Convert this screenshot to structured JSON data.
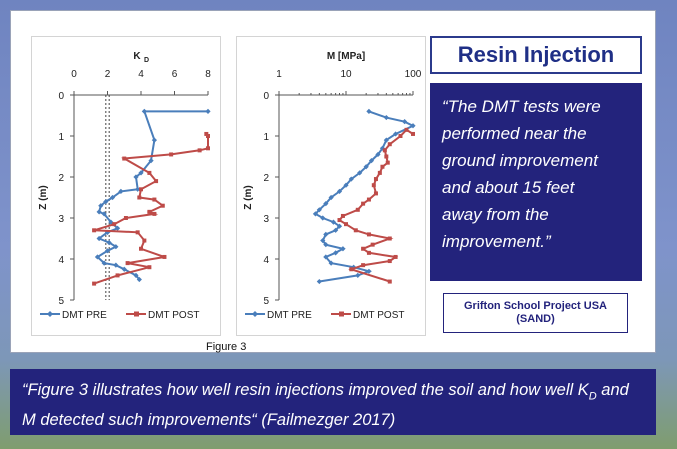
{
  "title": "Resin Injection",
  "quote_lines": [
    "“The DMT tests were",
    "performed near the",
    "ground improvement",
    "and about 15 feet",
    "away from the",
    "improvement.”"
  ],
  "project": {
    "line1": "Grifton School Project USA",
    "line2": "(SAND)"
  },
  "figure_label": "Figure 3",
  "caption": {
    "part1": "“Figure 3 illustrates how well resin injections improved the soil and how well K",
    "sub": "D",
    "part2": " and M detected such improvements“ (Failmezger 2017)"
  },
  "colors": {
    "pre": "#4a7ebb",
    "post": "#be4b48",
    "dark_blue": "#23237c"
  },
  "chart_data": [
    {
      "type": "line",
      "title_main": "K",
      "title_sub": "D",
      "ylabel": "Z (m)",
      "xlim": [
        0,
        8
      ],
      "ylim": [
        5,
        0
      ],
      "x_ticks": [
        "0",
        "2",
        "4",
        "6",
        "8"
      ],
      "y_ticks": [
        "0",
        "1",
        "2",
        "3",
        "4",
        "5"
      ],
      "reference_lines": [
        1.9,
        2.1
      ],
      "legend": "bottom",
      "series": [
        {
          "name": "DMT PRE",
          "marker": "diamond",
          "points": [
            [
              8,
              0.4
            ],
            [
              4.2,
              0.4
            ],
            [
              4.8,
              1.1
            ],
            [
              4.6,
              1.6
            ],
            [
              4.0,
              1.9
            ],
            [
              3.7,
              2.0
            ],
            [
              3.8,
              2.3
            ],
            [
              2.8,
              2.35
            ],
            [
              2.3,
              2.5
            ],
            [
              1.9,
              2.6
            ],
            [
              1.6,
              2.7
            ],
            [
              1.5,
              2.85
            ],
            [
              1.8,
              2.9
            ],
            [
              2.2,
              3.1
            ],
            [
              2.6,
              3.25
            ],
            [
              2.0,
              3.35
            ],
            [
              1.5,
              3.5
            ],
            [
              2.1,
              3.6
            ],
            [
              2.5,
              3.7
            ],
            [
              2.0,
              3.8
            ],
            [
              1.4,
              3.95
            ],
            [
              1.8,
              4.1
            ],
            [
              2.5,
              4.15
            ],
            [
              3.0,
              4.25
            ],
            [
              3.7,
              4.4
            ],
            [
              3.9,
              4.5
            ]
          ]
        },
        {
          "name": "DMT POST",
          "marker": "square",
          "points": [
            [
              7.9,
              0.95
            ],
            [
              8,
              1.0
            ],
            [
              8,
              1.3
            ],
            [
              7.5,
              1.35
            ],
            [
              5.8,
              1.45
            ],
            [
              3.0,
              1.55
            ],
            [
              4.5,
              1.9
            ],
            [
              4.9,
              2.1
            ],
            [
              4.0,
              2.3
            ],
            [
              3.9,
              2.5
            ],
            [
              4.8,
              2.55
            ],
            [
              5.3,
              2.7
            ],
            [
              4.5,
              2.85
            ],
            [
              4.8,
              2.9
            ],
            [
              3.1,
              3.0
            ],
            [
              2.4,
              3.15
            ],
            [
              1.2,
              3.3
            ],
            [
              3.8,
              3.35
            ],
            [
              4.2,
              3.55
            ],
            [
              4.0,
              3.75
            ],
            [
              5.4,
              3.95
            ],
            [
              3.2,
              4.1
            ],
            [
              4.5,
              4.2
            ],
            [
              2.6,
              4.4
            ],
            [
              1.2,
              4.6
            ]
          ]
        }
      ]
    },
    {
      "type": "line",
      "title": "M [MPa]",
      "ylabel": "Z (m)",
      "x_scale": "log",
      "xlim": [
        1,
        100
      ],
      "ylim": [
        5,
        0
      ],
      "x_ticks": [
        "1",
        "10",
        "100"
      ],
      "y_ticks": [
        "0",
        "1",
        "2",
        "3",
        "4",
        "5"
      ],
      "legend": "bottom",
      "series": [
        {
          "name": "DMT PRE",
          "marker": "diamond",
          "points": [
            [
              22,
              0.4
            ],
            [
              40,
              0.55
            ],
            [
              75,
              0.65
            ],
            [
              100,
              0.75
            ],
            [
              55,
              0.95
            ],
            [
              40,
              1.1
            ],
            [
              35,
              1.3
            ],
            [
              30,
              1.45
            ],
            [
              24,
              1.6
            ],
            [
              20,
              1.75
            ],
            [
              16,
              1.9
            ],
            [
              12,
              2.05
            ],
            [
              10,
              2.2
            ],
            [
              8,
              2.35
            ],
            [
              6,
              2.5
            ],
            [
              5,
              2.65
            ],
            [
              4,
              2.8
            ],
            [
              3.5,
              2.9
            ],
            [
              4.5,
              3.0
            ],
            [
              6.5,
              3.1
            ],
            [
              8,
              3.2
            ],
            [
              7,
              3.3
            ],
            [
              5,
              3.4
            ],
            [
              4.5,
              3.55
            ],
            [
              5,
              3.65
            ],
            [
              9,
              3.75
            ],
            [
              7,
              3.85
            ],
            [
              5,
              3.95
            ],
            [
              6,
              4.1
            ],
            [
              13,
              4.2
            ],
            [
              22,
              4.3
            ],
            [
              15,
              4.4
            ],
            [
              4,
              4.55
            ]
          ]
        },
        {
          "name": "DMT POST",
          "marker": "square",
          "points": [
            [
              100,
              0.95
            ],
            [
              80,
              0.85
            ],
            [
              65,
              1.0
            ],
            [
              45,
              1.2
            ],
            [
              38,
              1.35
            ],
            [
              40,
              1.5
            ],
            [
              42,
              1.65
            ],
            [
              35,
              1.75
            ],
            [
              32,
              1.9
            ],
            [
              28,
              2.05
            ],
            [
              26,
              2.2
            ],
            [
              28,
              2.4
            ],
            [
              22,
              2.55
            ],
            [
              18,
              2.65
            ],
            [
              15,
              2.8
            ],
            [
              9,
              2.95
            ],
            [
              8,
              3.05
            ],
            [
              10,
              3.15
            ],
            [
              14,
              3.3
            ],
            [
              22,
              3.4
            ],
            [
              45,
              3.5
            ],
            [
              25,
              3.65
            ],
            [
              18,
              3.75
            ],
            [
              22,
              3.85
            ],
            [
              55,
              3.95
            ],
            [
              45,
              4.05
            ],
            [
              18,
              4.15
            ],
            [
              12,
              4.25
            ],
            [
              45,
              4.55
            ]
          ]
        }
      ]
    }
  ]
}
